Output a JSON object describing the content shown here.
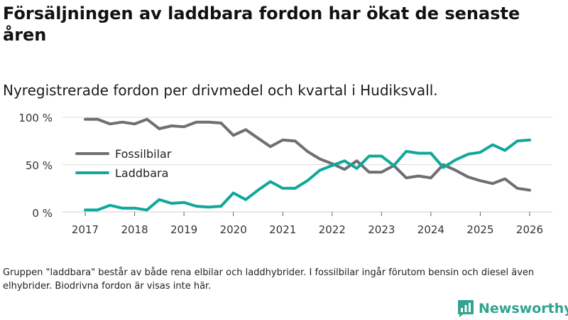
{
  "title": "Försäljningen av laddbara fordon har ökat de senaste åren",
  "subtitle": "Nyregistrerade fordon per drivmedel och kvartal i Hudiksvall.",
  "note": "Gruppen \"laddbara\" består av både rena elbilar och laddhybrider. I fossilbilar ingår förutom bensin och diesel även elhybrider. Biodrivna fordon är visas inte här.",
  "brand": "Newsworthy",
  "colors": {
    "fossil": "#6f6e73",
    "laddbara": "#10a89b",
    "grid": "#dddddd",
    "brand": "#31a38f"
  },
  "chart_data": {
    "type": "line",
    "x": [
      2017.0,
      2017.25,
      2017.5,
      2017.75,
      2018.0,
      2018.25,
      2018.5,
      2018.75,
      2019.0,
      2019.25,
      2019.5,
      2019.75,
      2020.0,
      2020.25,
      2020.5,
      2020.75,
      2021.0,
      2021.25,
      2021.5,
      2021.75,
      2022.0,
      2022.25,
      2022.5,
      2022.75,
      2023.0,
      2023.25,
      2023.5,
      2023.75,
      2024.0,
      2024.25,
      2024.5,
      2024.75,
      2025.0,
      2025.25,
      2025.5,
      2025.75,
      2026.0
    ],
    "series": [
      {
        "name": "Fossilbilar",
        "values": [
          98,
          98,
          93,
          95,
          93,
          98,
          88,
          91,
          90,
          95,
          95,
          94,
          81,
          87,
          78,
          69,
          76,
          75,
          64,
          56,
          51,
          45,
          54,
          42,
          42,
          49,
          36,
          38,
          36,
          50,
          44,
          37,
          33,
          30,
          35,
          25,
          23
        ]
      },
      {
        "name": "Laddbara",
        "values": [
          2,
          2,
          7,
          4,
          4,
          2,
          13,
          9,
          10,
          6,
          5,
          6,
          20,
          13,
          23,
          32,
          25,
          25,
          33,
          44,
          49,
          54,
          46,
          59,
          59,
          49,
          64,
          62,
          62,
          47,
          55,
          61,
          63,
          71,
          65,
          75,
          76
        ]
      }
    ],
    "xticks": [
      "2017",
      "2018",
      "2019",
      "2020",
      "2021",
      "2022",
      "2023",
      "2024",
      "2025",
      "2026"
    ],
    "yticks": [
      "0 %",
      "50 %",
      "100 %"
    ],
    "ylim": [
      0,
      100
    ],
    "xlim": [
      2017,
      2026
    ],
    "legend": "middle-left"
  }
}
